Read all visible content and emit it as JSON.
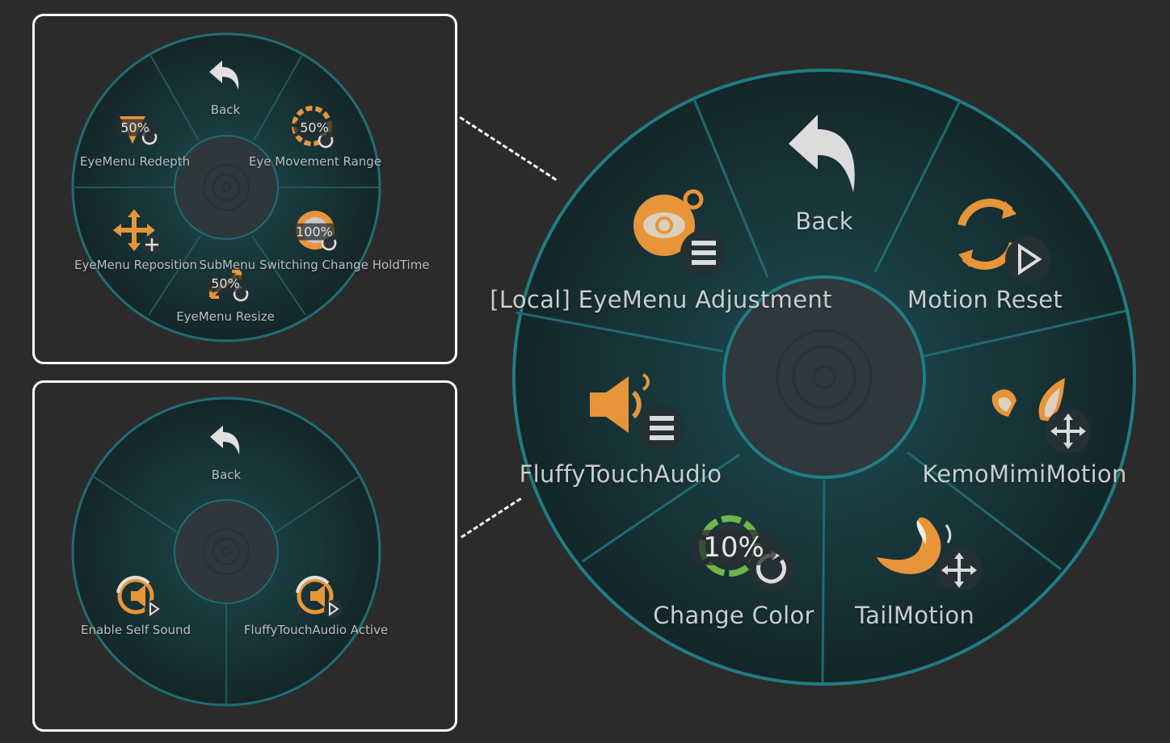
{
  "panels": {
    "eye_menu": {
      "items": [
        {
          "label": "Back",
          "icon": "back-arrow-icon"
        },
        {
          "label": "Eye Movement Range",
          "icon": "range-icon",
          "value": "50%"
        },
        {
          "label": "SubMenu Switching Change HoldTime",
          "icon": "holdtime-icon",
          "value": "100%"
        },
        {
          "label": "EyeMenu Resize",
          "icon": "resize-icon",
          "value": "50%"
        },
        {
          "label": "EyeMenu Reposition",
          "icon": "move-icon"
        },
        {
          "label": "EyeMenu Redepth",
          "icon": "depth-icon",
          "value": "50%"
        }
      ]
    },
    "audio_menu": {
      "items": [
        {
          "label": "Back",
          "icon": "back-arrow-icon"
        },
        {
          "label": "Enable Self Sound",
          "icon": "self-sound-toggle-icon"
        },
        {
          "label": "FluffyTouchAudio Active",
          "icon": "audio-toggle-icon"
        }
      ]
    },
    "main_menu": {
      "items": [
        {
          "label": "Back",
          "icon": "back-arrow-icon"
        },
        {
          "label": "Motion Reset",
          "icon": "reset-icon"
        },
        {
          "label": "KemoMimiMotion",
          "icon": "ears-icon"
        },
        {
          "label": "TailMotion",
          "icon": "tail-icon"
        },
        {
          "label": "Change Color",
          "icon": "color-wheel-icon",
          "value": "10%"
        },
        {
          "label": "FluffyTouchAudio",
          "icon": "speaker-icon"
        },
        {
          "label": "[Local] EyeMenu Adjustment",
          "icon": "eye-icon"
        }
      ]
    }
  },
  "colors": {
    "background": "#2b2b2b",
    "wheel_fill": "#16363a",
    "wheel_rim": "#1f7d86",
    "accent_orange": "#e8953a",
    "label": "#c8cdd0"
  }
}
